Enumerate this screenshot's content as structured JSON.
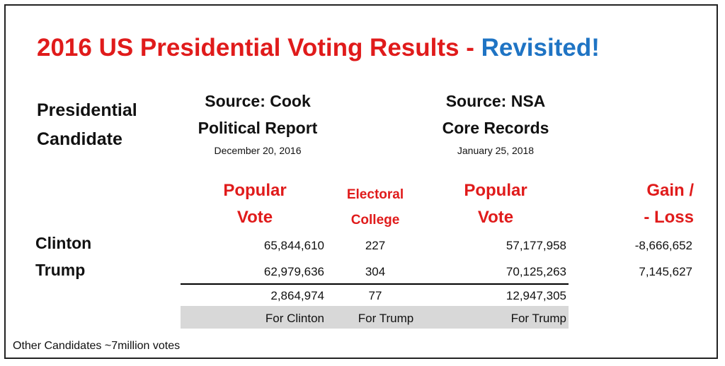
{
  "title": {
    "main": "2016 US Presidential Voting Results - ",
    "highlight": "Revisited!"
  },
  "header": {
    "candidate_line1": "Presidential",
    "candidate_line2": "Candidate",
    "source1_line1": "Source: Cook",
    "source1_line2": "Political Report",
    "source1_date": "December 20, 2016",
    "source2_line1": "Source: NSA",
    "source2_line2": "Core Records",
    "source2_date": "January 25, 2018"
  },
  "columns": {
    "popular1_line1": "Popular",
    "popular1_line2": "Vote",
    "electoral_line1": "Electoral",
    "electoral_line2": "College",
    "popular2_line1": "Popular",
    "popular2_line2": "Vote",
    "gain_line1": "Gain /",
    "gain_line2": "- Loss"
  },
  "rows": [
    {
      "candidate": "Clinton",
      "popular1": "65,844,610",
      "electoral": "227",
      "popular2": "57,177,958",
      "gain": "-8,666,652"
    },
    {
      "candidate": "Trump",
      "popular1": "62,979,636",
      "electoral": "304",
      "popular2": "70,125,263",
      "gain": "7,145,627"
    }
  ],
  "totals": {
    "popular1": "2,864,974",
    "electoral": "77",
    "popular2": "12,947,305"
  },
  "winners": {
    "popular1": "For Clinton",
    "electoral": "For Trump",
    "popular2": "For Trump"
  },
  "footer": "Other Candidates ~7million votes",
  "colors": {
    "red": "#e01b1b",
    "blue": "#1f74c4",
    "grey_band": "#d8d8d8"
  }
}
